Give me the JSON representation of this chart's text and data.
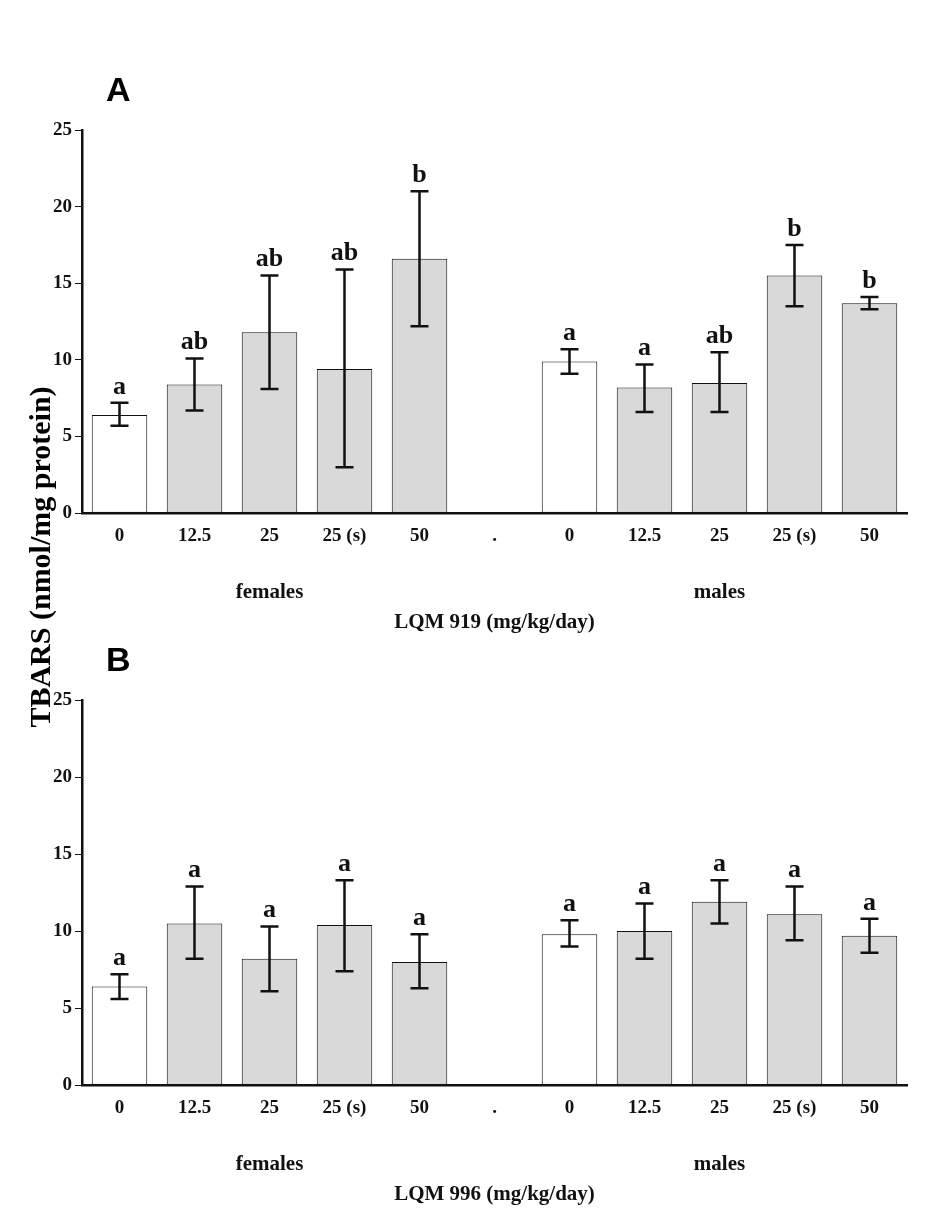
{
  "chart_data": [
    {
      "type": "bar",
      "title": "A",
      "xlabel": "LQM 919 (mg/kg/day)",
      "ylabel": "TBARS (nmol/mg protein)",
      "categories": [
        "0",
        "12.5",
        "25",
        "25 (s)",
        "50",
        ".",
        "0",
        "12.5",
        "25",
        "25 (s)",
        "50"
      ],
      "values": [
        6.4,
        8.4,
        11.8,
        9.4,
        16.6,
        null,
        9.9,
        8.2,
        8.5,
        15.5,
        13.7
      ],
      "errors": [
        [
          5.7,
          7.2
        ],
        [
          6.7,
          10.1
        ],
        [
          8.1,
          15.5
        ],
        [
          3.0,
          15.9
        ],
        [
          12.2,
          21.0
        ],
        null,
        [
          9.1,
          10.7
        ],
        [
          6.6,
          9.7
        ],
        [
          6.6,
          10.5
        ],
        [
          13.5,
          17.5
        ],
        [
          13.3,
          14.1
        ]
      ],
      "colors": [
        "#ffffff",
        "#d9d9d9",
        "#d9d9d9",
        "#d9d9d9",
        "#d9d9d9",
        "#d9d9d9",
        "#ffffff",
        "#d9d9d9",
        "#d9d9d9",
        "#d9d9d9",
        "#d9d9d9"
      ],
      "annotations": [
        "females",
        "males",
        "a",
        "ab",
        "ab",
        "ab",
        "b",
        "a",
        "a",
        "ab",
        "b",
        "b"
      ],
      "ylim": [
        0,
        25
      ],
      "yticks": [
        0,
        5,
        10,
        15,
        20,
        25
      ],
      "grid": false,
      "legend": false
    },
    {
      "type": "bar",
      "title": "B",
      "xlabel": "LQM 996 (mg/kg/day)",
      "categories": [
        "0",
        "12.5",
        "25",
        "25 (s)",
        "50",
        ".",
        "0",
        "12.5",
        "25",
        "25 (s)",
        "50"
      ],
      "values": [
        6.4,
        10.5,
        8.2,
        10.4,
        8.0,
        null,
        9.8,
        10.0,
        11.9,
        11.1,
        9.7
      ],
      "errors": [
        [
          5.6,
          7.2
        ],
        [
          8.2,
          12.9
        ],
        [
          6.1,
          10.3
        ],
        [
          7.4,
          13.3
        ],
        [
          6.3,
          9.8
        ],
        null,
        [
          9.0,
          10.7
        ],
        [
          8.2,
          11.8
        ],
        [
          10.5,
          13.3
        ],
        [
          9.4,
          12.9
        ],
        [
          8.6,
          10.8
        ]
      ],
      "colors": [
        "#ffffff",
        "#d9d9d9",
        "#d9d9d9",
        "#d9d9d9",
        "#d9d9d9",
        "#d9d9d9",
        "#ffffff",
        "#d9d9d9",
        "#d9d9d9",
        "#d9d9d9",
        "#d9d9d9"
      ],
      "annotations": [
        "females",
        "males",
        "a",
        "a",
        "a",
        "a",
        "a",
        "a",
        "a",
        "a",
        "a",
        "a"
      ],
      "ylim": [
        0,
        25
      ],
      "yticks": [
        0,
        5,
        10,
        15,
        20,
        25
      ],
      "grid": false,
      "legend": false
    }
  ]
}
